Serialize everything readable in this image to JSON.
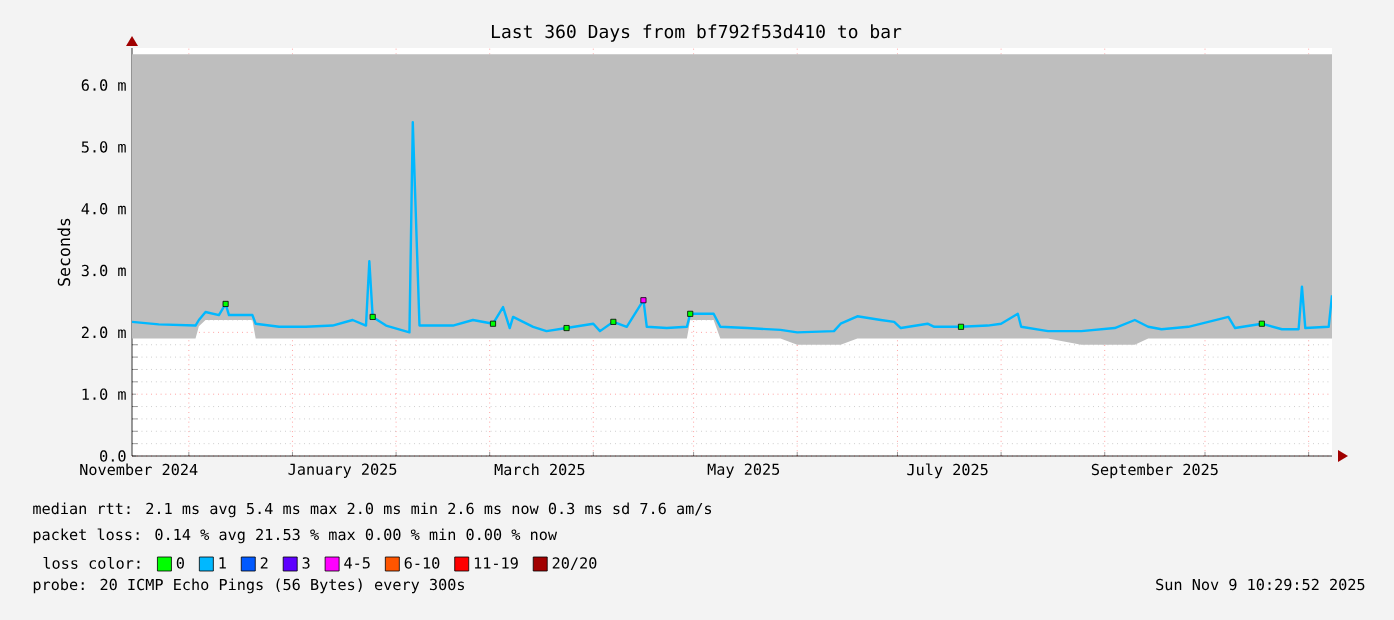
{
  "chart_data": {
    "type": "line",
    "title": "Last 360 Days from bf792f53d410 to bar",
    "ylabel": "Seconds",
    "xlim": [
      "2024-11-14",
      "2025-11-08"
    ],
    "xticks": [
      {
        "value": "2024-11-16",
        "label": "November 2024"
      },
      {
        "value": "2024-12-01",
        "label": null
      },
      {
        "value": "2025-01-01",
        "label": null
      },
      {
        "value": "2025-01-16",
        "label": "January 2025"
      },
      {
        "value": "2025-02-01",
        "label": null
      },
      {
        "value": "2025-03-01",
        "label": null
      },
      {
        "value": "2025-03-16",
        "label": "March 2025"
      },
      {
        "value": "2025-04-01",
        "label": null
      },
      {
        "value": "2025-05-01",
        "label": null
      },
      {
        "value": "2025-05-16",
        "label": "May 2025"
      },
      {
        "value": "2025-06-01",
        "label": null
      },
      {
        "value": "2025-07-01",
        "label": null
      },
      {
        "value": "2025-07-16",
        "label": "July 2025"
      },
      {
        "value": "2025-08-01",
        "label": null
      },
      {
        "value": "2025-09-01",
        "label": null
      },
      {
        "value": "2025-09-16",
        "label": "September 2025"
      },
      {
        "value": "2025-10-01",
        "label": null
      },
      {
        "value": "2025-11-01",
        "label": null
      }
    ],
    "ylim": [
      0,
      6.6
    ],
    "yticks": [
      {
        "value": 0,
        "label": "0.0"
      },
      {
        "value": 1,
        "label": "1.0 m"
      },
      {
        "value": 2,
        "label": "2.0 m"
      },
      {
        "value": 3,
        "label": "3.0 m"
      },
      {
        "value": 4,
        "label": "4.0 m"
      },
      {
        "value": 5,
        "label": "5.0 m"
      },
      {
        "value": 6,
        "label": "6.0 m"
      }
    ],
    "grid": true,
    "legend": "bottom",
    "legend_title": "loss color:",
    "series": [
      {
        "name": "0",
        "color": "#00ff00",
        "type": "scatter",
        "marker": "square",
        "x": [
          "2024-12-12",
          "2025-01-25",
          "2025-03-02",
          "2025-03-24",
          "2025-04-07",
          "2025-04-30",
          "2025-07-20",
          "2025-10-18"
        ],
        "values": [
          2.46,
          2.25,
          2.14,
          2.07,
          2.17,
          2.3,
          2.09,
          2.14
        ]
      },
      {
        "name": "1",
        "color": "#00b8ff",
        "marker": "none",
        "x": [
          "2024-11-14",
          "2024-11-22",
          "2024-12-03",
          "2024-12-04",
          "2024-12-06",
          "2024-12-10",
          "2024-12-12",
          "2024-12-13",
          "2024-12-20",
          "2024-12-21",
          "2024-12-28",
          "2025-01-05",
          "2025-01-13",
          "2025-01-19",
          "2025-01-23",
          "2025-01-24",
          "2025-01-25",
          "2025-01-29",
          "2025-02-05",
          "2025-02-06",
          "2025-02-08",
          "2025-02-18",
          "2025-02-24",
          "2025-03-02",
          "2025-03-05",
          "2025-03-07",
          "2025-03-08",
          "2025-03-14",
          "2025-03-18",
          "2025-03-24",
          "2025-04-01",
          "2025-04-03",
          "2025-04-07",
          "2025-04-11",
          "2025-04-16",
          "2025-04-17",
          "2025-04-23",
          "2025-04-29",
          "2025-04-30",
          "2025-05-07",
          "2025-05-09",
          "2025-05-17",
          "2025-05-27",
          "2025-06-01",
          "2025-06-12",
          "2025-06-14",
          "2025-06-19",
          "2025-06-26",
          "2025-06-30",
          "2025-07-02",
          "2025-07-10",
          "2025-07-12",
          "2025-07-20",
          "2025-07-28",
          "2025-08-01",
          "2025-08-06",
          "2025-08-07",
          "2025-08-15",
          "2025-08-25",
          "2025-09-04",
          "2025-09-10",
          "2025-09-14",
          "2025-09-18",
          "2025-09-26",
          "2025-10-08",
          "2025-10-10",
          "2025-10-18",
          "2025-10-24",
          "2025-10-29",
          "2025-10-30",
          "2025-10-31",
          "2025-11-07",
          "2025-11-08"
        ],
        "values": [
          2.17,
          2.13,
          2.11,
          2.2,
          2.33,
          2.28,
          2.46,
          2.28,
          2.28,
          2.14,
          2.09,
          2.09,
          2.11,
          2.2,
          2.11,
          3.15,
          2.25,
          2.11,
          2.0,
          5.4,
          2.11,
          2.11,
          2.2,
          2.14,
          2.41,
          2.07,
          2.25,
          2.09,
          2.02,
          2.07,
          2.14,
          2.02,
          2.17,
          2.09,
          2.52,
          2.09,
          2.07,
          2.09,
          2.3,
          2.3,
          2.09,
          2.07,
          2.04,
          2.0,
          2.02,
          2.14,
          2.26,
          2.2,
          2.17,
          2.07,
          2.14,
          2.09,
          2.09,
          2.11,
          2.14,
          2.3,
          2.09,
          2.02,
          2.02,
          2.07,
          2.2,
          2.09,
          2.05,
          2.09,
          2.25,
          2.07,
          2.14,
          2.05,
          2.05,
          2.74,
          2.07,
          2.09,
          2.6
        ],
        "lower": [
          1.9,
          1.9,
          1.9,
          2.1,
          2.2,
          2.2,
          2.2,
          2.2,
          2.2,
          1.9,
          1.9,
          1.9,
          1.9,
          1.9,
          1.9,
          1.9,
          1.9,
          1.9,
          1.9,
          1.9,
          1.9,
          1.9,
          1.9,
          1.9,
          1.9,
          1.9,
          1.9,
          1.9,
          1.9,
          1.9,
          1.9,
          1.9,
          1.9,
          1.9,
          1.9,
          1.9,
          1.9,
          1.9,
          2.2,
          2.2,
          1.9,
          1.9,
          1.9,
          1.8,
          1.8,
          1.8,
          1.9,
          1.9,
          1.9,
          1.9,
          1.9,
          1.9,
          1.9,
          1.9,
          1.9,
          1.9,
          1.9,
          1.9,
          1.8,
          1.8,
          1.8,
          1.9,
          1.9,
          1.9,
          1.9,
          1.9,
          1.9,
          1.9,
          1.9,
          1.9,
          1.9,
          1.9,
          1.9
        ],
        "upper": [
          6.5,
          6.5,
          6.5,
          6.5,
          6.5,
          6.5,
          6.5,
          6.5,
          6.5,
          6.5,
          6.5,
          6.5,
          6.5,
          6.5,
          6.5,
          6.5,
          6.5,
          6.5,
          6.5,
          6.5,
          6.5,
          6.5,
          6.5,
          6.5,
          6.5,
          6.5,
          6.5,
          6.5,
          6.5,
          6.5,
          6.5,
          6.5,
          6.5,
          6.5,
          6.5,
          6.5,
          6.5,
          6.5,
          6.5,
          6.5,
          6.5,
          6.5,
          6.5,
          6.5,
          6.5,
          6.5,
          6.5,
          6.5,
          6.5,
          6.5,
          6.5,
          6.5,
          6.5,
          6.5,
          6.5,
          6.5,
          6.5,
          6.5,
          6.5,
          6.5,
          6.5,
          6.5,
          6.5,
          6.5,
          6.5,
          6.5,
          6.5,
          6.5,
          6.5,
          6.5,
          6.5,
          6.5,
          6.5
        ]
      },
      {
        "name": "2",
        "color": "#0059ff",
        "type": "scatter"
      },
      {
        "name": "3",
        "color": "#5e00ff",
        "type": "scatter"
      },
      {
        "name": "4-5",
        "color": "#ff00ff",
        "type": "scatter",
        "marker": "square",
        "x": [
          "2025-04-16"
        ],
        "values": [
          2.52
        ]
      },
      {
        "name": "6-10",
        "color": "#ff5500",
        "type": "scatter"
      },
      {
        "name": "11-19",
        "color": "#ff0000",
        "type": "scatter"
      },
      {
        "name": "20/20",
        "color": "#a10000",
        "type": "scatter"
      }
    ],
    "annotations": [
      "median rtt: 2.1 ms avg 5.4 ms max 2.0 ms min 2.6 ms now 0.3 ms sd 7.6 am/s",
      "packet loss: 0.14 % avg 21.53 % max 0.00 % min 0.00 % now",
      "probe: 20 ICMP Echo Pings (56 Bytes) every 300s",
      "Sun Nov 9 10:29:52 2025"
    ]
  }
}
